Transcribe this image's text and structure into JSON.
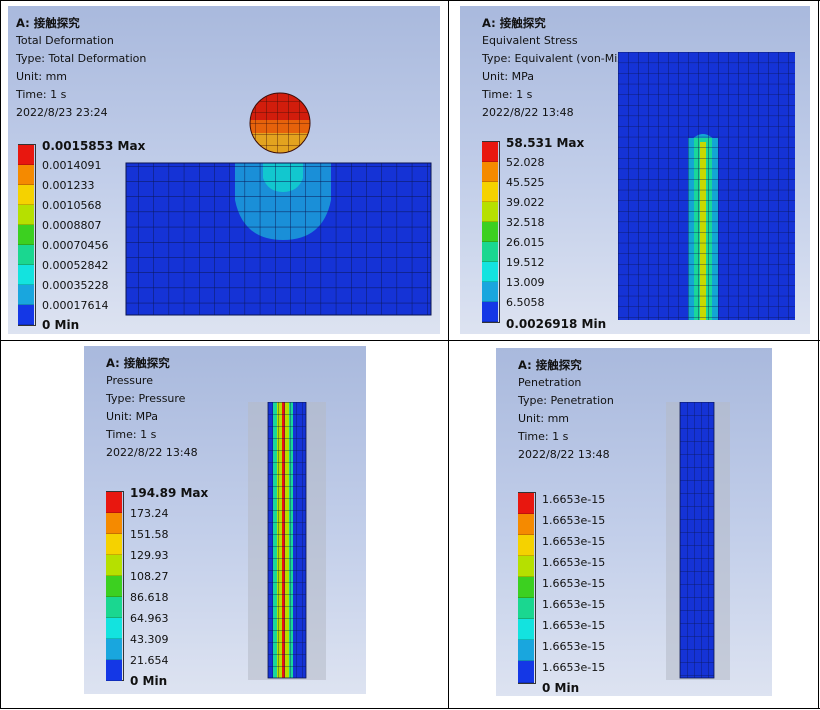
{
  "panels": [
    {
      "id": "total-deformation",
      "header": "A: 接触探究",
      "lines": [
        "Total Deformation",
        "Type: Total Deformation",
        "Unit: mm",
        "Time: 1 s",
        "2022/8/23 23:24"
      ],
      "legend": [
        "0.0015853 Max",
        "0.0014091",
        "0.001233",
        "0.0010568",
        "0.0008807",
        "0.00070456",
        "0.00052842",
        "0.00035228",
        "0.00017614",
        "0 Min"
      ]
    },
    {
      "id": "equivalent-stress",
      "header": "A: 接触探究",
      "lines": [
        "Equivalent Stress",
        "Type: Equivalent (von-Mises) Stress",
        "Unit: MPa",
        "Time: 1 s",
        "2022/8/22 13:48"
      ],
      "legend": [
        "58.531 Max",
        "52.028",
        "45.525",
        "39.022",
        "32.518",
        "26.015",
        "19.512",
        "13.009",
        "6.5058",
        "0.0026918 Min"
      ]
    },
    {
      "id": "pressure",
      "header": "A: 接触探究",
      "lines": [
        "Pressure",
        "Type: Pressure",
        "Unit: MPa",
        "Time: 1 s",
        "2022/8/22 13:48"
      ],
      "legend": [
        "194.89 Max",
        "173.24",
        "151.58",
        "129.93",
        "108.27",
        "86.618",
        "64.963",
        "43.309",
        "21.654",
        "0 Min"
      ]
    },
    {
      "id": "penetration",
      "header": "A: 接触探究",
      "lines": [
        "Penetration",
        "Type: Penetration",
        "Unit: mm",
        "Time: 1 s",
        "2022/8/22 13:48"
      ],
      "legend": [
        "1.6653e-15",
        "1.6653e-15",
        "1.6653e-15",
        "1.6653e-15",
        "1.6653e-15",
        "1.6653e-15",
        "1.6653e-15",
        "1.6653e-15",
        "1.6653e-15",
        "0 Min"
      ]
    }
  ],
  "legend_colors": [
    "#e8170f",
    "#f58a00",
    "#f5d200",
    "#b6e000",
    "#3cd020",
    "#1ad790",
    "#13e3df",
    "#19a6de",
    "#1437e6"
  ]
}
